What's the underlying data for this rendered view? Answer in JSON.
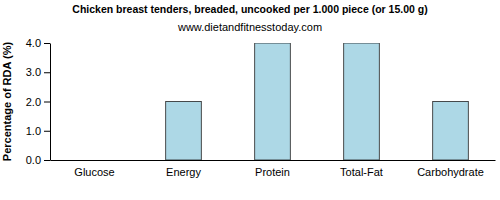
{
  "chart_data": {
    "type": "bar",
    "title": "Chicken breast tenders, breaded, uncooked per 1.000 piece (or 15.00 g)",
    "subtitle": "www.dietandfitnesstoday.com",
    "y_label": "Percentage of RDA (%)",
    "categories": [
      "Glucose",
      "Energy",
      "Protein",
      "Total-Fat",
      "Carbohydrate"
    ],
    "values": [
      0,
      2,
      4,
      4,
      2
    ],
    "color": "#add8e6",
    "ylim": [
      0,
      4
    ],
    "yticks": [
      {
        "value": 0,
        "label": "0.0"
      },
      {
        "value": 1,
        "label": "1.0"
      },
      {
        "value": 2,
        "label": "2.0"
      },
      {
        "value": 3,
        "label": "3.0"
      },
      {
        "value": 4,
        "label": "4.0"
      }
    ],
    "grid": false
  }
}
